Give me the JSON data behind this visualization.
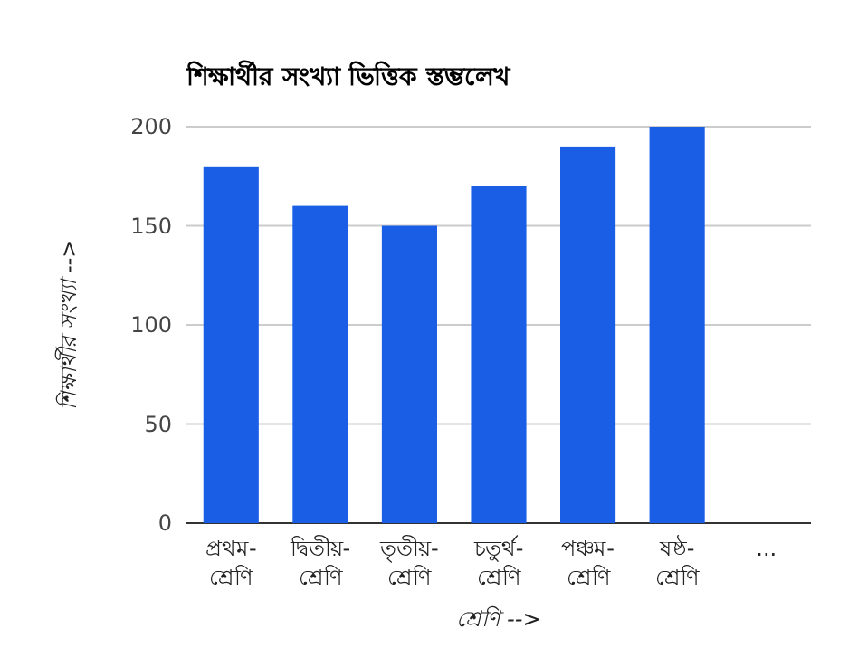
{
  "chart_data": {
    "type": "bar",
    "title": "শিক্ষার্থীর সংখ্যা ভিত্তিক স্তম্ভলেখ",
    "xlabel": "শ্রেণি -->",
    "ylabel": "শিক্ষার্থীর সংখ্যা -->",
    "categories": [
      "প্রথম-শ্রেণি",
      "দ্বিতীয়-শ্রেণি",
      "তৃতীয়-শ্রেণি",
      "চতুর্থ-শ্রেণি",
      "পঞ্চম-শ্রেণি",
      "ষষ্ঠ-শ্রেণি",
      "..."
    ],
    "values": [
      180,
      160,
      150,
      170,
      190,
      200,
      null
    ],
    "color": "#1a5ee6",
    "ylim": [
      0,
      200
    ],
    "yticks": [
      0,
      50,
      100,
      150,
      200
    ],
    "grid": "y"
  }
}
